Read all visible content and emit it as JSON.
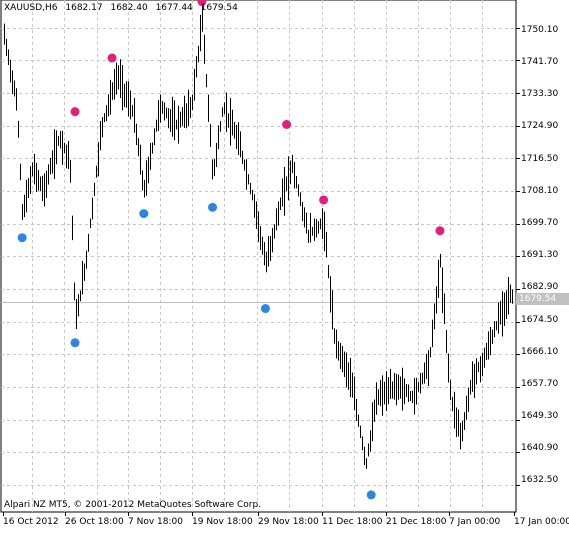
{
  "header": {
    "symbol": "XAUUSD,H6",
    "ohlc": [
      "1682.17",
      "1682.40",
      "1677.44",
      "1679.54"
    ]
  },
  "copyright": "Alpari NZ MT5, © 2001-2012 MetaQuotes Software Corp.",
  "current_price_tag": "1679.54",
  "chart_data": {
    "type": "bar",
    "symbol": "XAUUSD",
    "timeframe": "H6",
    "ylim": [
      1625.6,
      1757.2
    ],
    "y_ticks": [
      1750.1,
      1741.7,
      1733.3,
      1724.9,
      1716.5,
      1708.1,
      1699.7,
      1691.3,
      1682.9,
      1674.5,
      1666.1,
      1657.7,
      1649.3,
      1640.9,
      1632.5
    ],
    "y_tick_labels": [
      "1750.10",
      "1741.70",
      "1733.30",
      "1724.90",
      "1716.50",
      "1708.10",
      "1699.70",
      "1691.30",
      "1682.90",
      "1674.50",
      "1666.10",
      "1657.70",
      "1649.30",
      "1640.90",
      "1632.50"
    ],
    "x_tick_labels": [
      "16 Oct 2012",
      "26 Oct 18:00",
      "7 Nov 18:00",
      "19 Nov 18:00",
      "29 Nov 18:00",
      "11 Dec 18:00",
      "21 Dec 18:00",
      "7 Jan 00:00",
      "17 Jan 00:00"
    ],
    "grid": true,
    "current_price": 1679.54,
    "series": [
      {
        "name": "fractal-up",
        "color": "#e0207a",
        "points": [
          {
            "x": "26 Oct",
            "y": 1728.5
          },
          {
            "x": "2 Nov",
            "y": 1742.3
          },
          {
            "x": "19 Nov",
            "y": 1756.8
          },
          {
            "x": "5 Dec",
            "y": 1725.2
          },
          {
            "x": "12 Dec",
            "y": 1705.8
          },
          {
            "x": "3 Jan",
            "y": 1697.9
          }
        ]
      },
      {
        "name": "fractal-down",
        "color": "#2a86e0",
        "points": [
          {
            "x": "16 Oct",
            "y": 1696.1
          },
          {
            "x": "26 Oct",
            "y": 1669.1
          },
          {
            "x": "8 Nov",
            "y": 1702.3
          },
          {
            "x": "21 Nov",
            "y": 1703.9
          },
          {
            "x": "1 Dec",
            "y": 1677.9
          },
          {
            "x": "21 Dec",
            "y": 1630.0
          }
        ]
      }
    ],
    "price_path": [
      {
        "x": "12 Oct",
        "y": 1752
      },
      {
        "x": "15 Oct",
        "y": 1730
      },
      {
        "x": "16 Oct",
        "y": 1702
      },
      {
        "x": "18 Oct",
        "y": 1714
      },
      {
        "x": "20 Oct",
        "y": 1708
      },
      {
        "x": "23 Oct",
        "y": 1722
      },
      {
        "x": "25 Oct",
        "y": 1716
      },
      {
        "x": "26 Oct",
        "y": 1674
      },
      {
        "x": "28 Oct",
        "y": 1690
      },
      {
        "x": "31 Oct",
        "y": 1725
      },
      {
        "x": "3 Nov",
        "y": 1738
      },
      {
        "x": "6 Nov",
        "y": 1728
      },
      {
        "x": "8 Nov",
        "y": 1708
      },
      {
        "x": "11 Nov",
        "y": 1730
      },
      {
        "x": "14 Nov",
        "y": 1725
      },
      {
        "x": "17 Nov",
        "y": 1730
      },
      {
        "x": "19 Nov",
        "y": 1752
      },
      {
        "x": "21 Nov",
        "y": 1712
      },
      {
        "x": "23 Nov",
        "y": 1730
      },
      {
        "x": "26 Nov",
        "y": 1720
      },
      {
        "x": "29 Nov",
        "y": 1704
      },
      {
        "x": "1 Dec",
        "y": 1689
      },
      {
        "x": "4 Dec",
        "y": 1706
      },
      {
        "x": "6 Dec",
        "y": 1715
      },
      {
        "x": "9 Dec",
        "y": 1697
      },
      {
        "x": "12 Dec",
        "y": 1700
      },
      {
        "x": "14 Dec",
        "y": 1670
      },
      {
        "x": "17 Dec",
        "y": 1660
      },
      {
        "x": "20 Dec",
        "y": 1638
      },
      {
        "x": "22 Dec",
        "y": 1655
      },
      {
        "x": "26 Dec",
        "y": 1658
      },
      {
        "x": "29 Dec",
        "y": 1655
      },
      {
        "x": "1 Jan",
        "y": 1665
      },
      {
        "x": "3 Jan",
        "y": 1690
      },
      {
        "x": "5 Jan",
        "y": 1655
      },
      {
        "x": "7 Jan",
        "y": 1645
      },
      {
        "x": "9 Jan",
        "y": 1660
      },
      {
        "x": "11 Jan",
        "y": 1664
      },
      {
        "x": "14 Jan",
        "y": 1675
      },
      {
        "x": "16 Jan",
        "y": 1682
      },
      {
        "x": "17 Jan",
        "y": 1679.54
      }
    ]
  }
}
